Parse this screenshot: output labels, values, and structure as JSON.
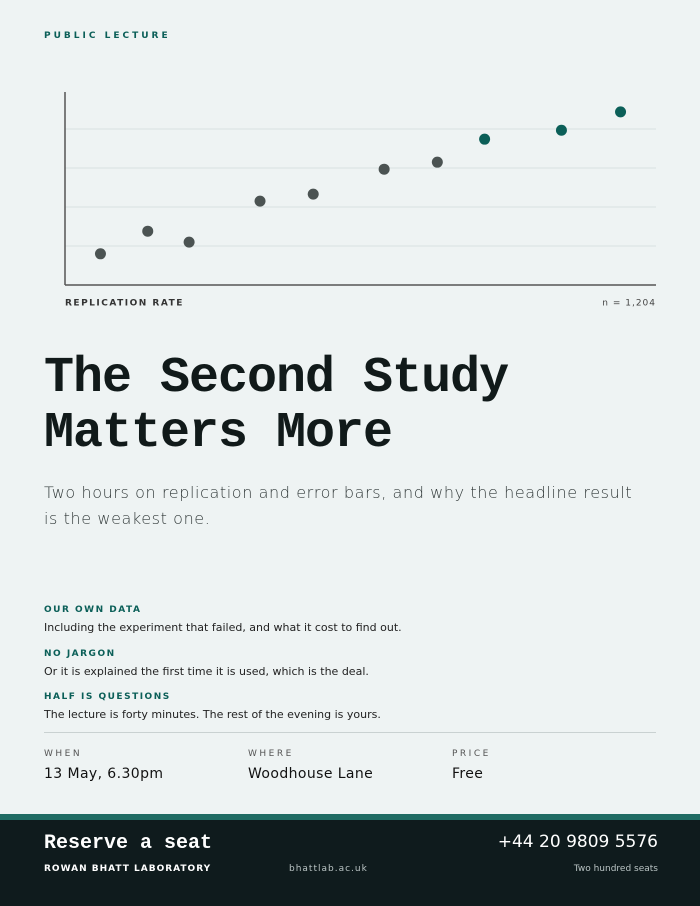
{
  "header": {
    "eyebrow": "PUBLIC LECTURE"
  },
  "chart": {
    "type": "scatter",
    "x_label": "REPLICATION RATE",
    "annotation": "n = 1,204",
    "x": [
      6,
      14,
      21,
      33,
      42,
      54,
      63,
      71,
      84,
      94
    ],
    "values": [
      0.8,
      1.38,
      1.1,
      2.15,
      2.33,
      2.97,
      3.15,
      3.74,
      3.97,
      4.44
    ],
    "colors": [
      "#4b5352",
      "#4b5352",
      "#4b5352",
      "#4b5352",
      "#4b5352",
      "#4b5352",
      "#4b5352",
      "#0b5f58",
      "#0b5f58",
      "#0b5f58"
    ],
    "xlim": [
      0,
      100
    ],
    "ylim": [
      0,
      4.95
    ],
    "yticks": [
      1,
      2,
      3,
      4
    ],
    "grid": true
  },
  "title": {
    "lines": [
      "The Second Study",
      "Matters More"
    ]
  },
  "subtitle": "Two hours on replication and error bars, and why the headline result is the weakest one.",
  "points": [
    {
      "heading": "OUR OWN DATA",
      "text": "Including the experiment that failed, and what it cost to find out."
    },
    {
      "heading": "NO JARGON",
      "text": "Or it is explained the first time it is used, which is the deal."
    },
    {
      "heading": "HALF IS QUESTIONS",
      "text": "The lecture is forty minutes. The rest of the evening is yours."
    }
  ],
  "details": [
    {
      "label": "WHEN",
      "value": "13 May, 6.30pm"
    },
    {
      "label": "WHERE",
      "value": "Woodhouse Lane"
    },
    {
      "label": "PRICE",
      "value": "Free"
    }
  ],
  "footer": {
    "cta": "Reserve a seat",
    "organizer": "ROWAN BHATT LABORATORY",
    "website": "bhattlab.ac.uk",
    "phone": "+44 20 9809 5576",
    "capacity": "Two hundred seats"
  }
}
